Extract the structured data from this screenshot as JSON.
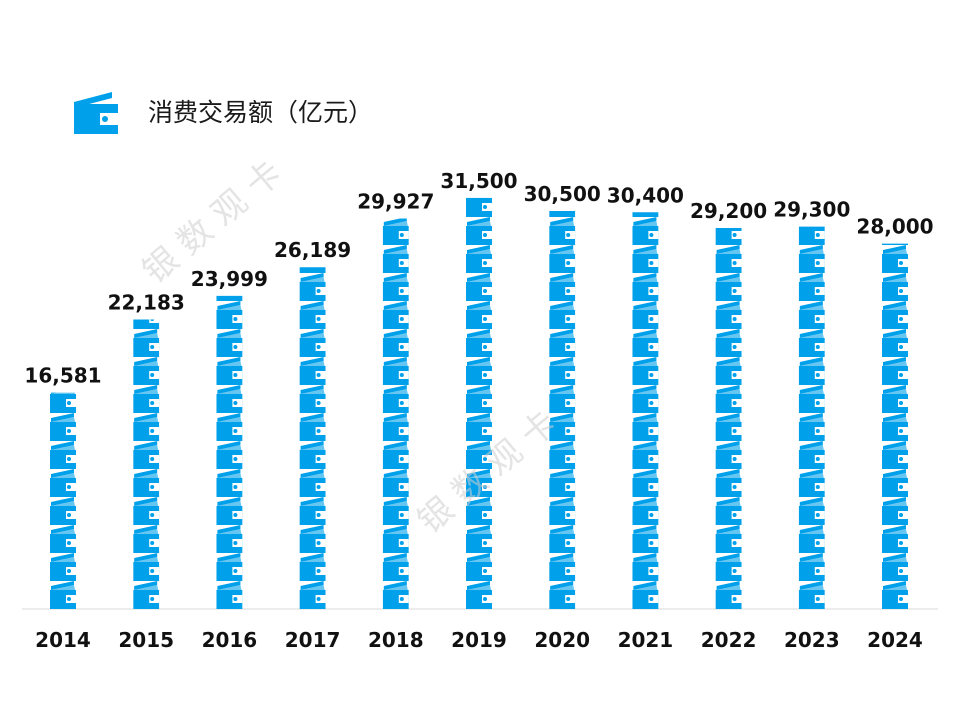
{
  "chart_data": {
    "type": "bar",
    "title": "消费交易额（亿元）",
    "categories": [
      "2014",
      "2015",
      "2016",
      "2017",
      "2018",
      "2019",
      "2020",
      "2021",
      "2022",
      "2023",
      "2024"
    ],
    "values": [
      16581,
      22183,
      23999,
      26189,
      29927,
      31500,
      30500,
      30400,
      29200,
      29300,
      28000
    ],
    "value_labels": [
      "16,581",
      "22,183",
      "23,999",
      "26,189",
      "29,927",
      "31,500",
      "30,500",
      "30,400",
      "29,200",
      "29,300",
      "28,000"
    ],
    "ylim": [
      0,
      40000
    ],
    "bar_style": "stacked-wallet-icons",
    "bar_color": "#00a0ea",
    "grid": false,
    "legend_position": "top-left"
  },
  "watermark": {
    "text": "银 数 观 卡",
    "color": "#cfcfcf"
  }
}
